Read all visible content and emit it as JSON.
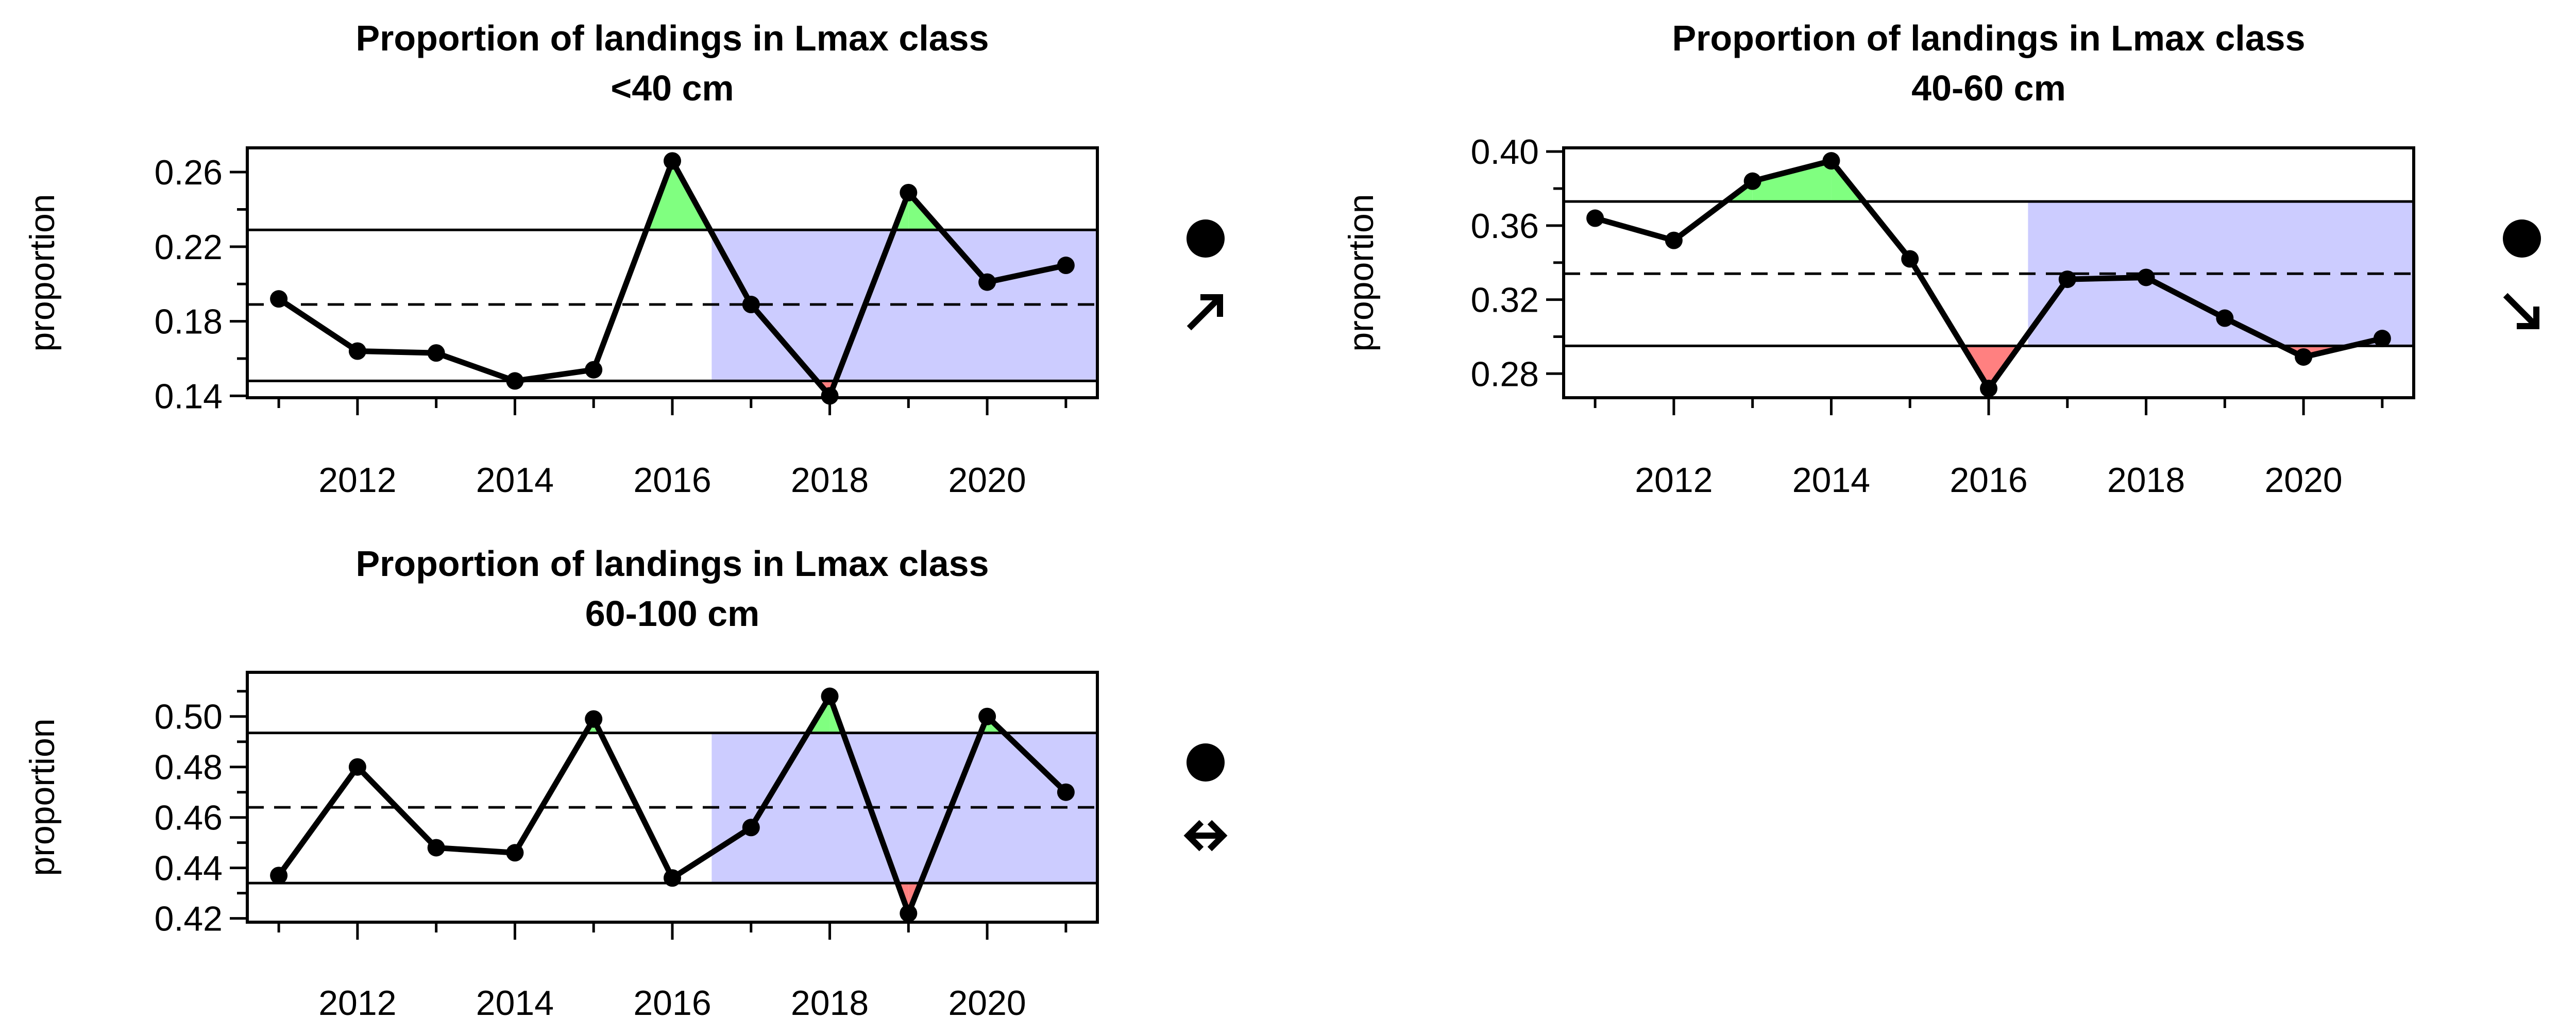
{
  "chart_data": [
    {
      "type": "line",
      "title": [
        "Proportion of landings in Lmax class",
        "<40 cm"
      ],
      "ylabel": "proportion",
      "x": [
        2011,
        2012,
        2013,
        2014,
        2015,
        2016,
        2017,
        2018,
        2019,
        2020,
        2021
      ],
      "values": [
        0.192,
        0.164,
        0.163,
        0.148,
        0.154,
        0.266,
        0.189,
        0.14,
        0.249,
        0.201,
        0.21
      ],
      "xticks": [
        "2012",
        "2014",
        "2016",
        "2018",
        "2020"
      ],
      "yticks": [
        "0.14",
        "0.18",
        "0.22",
        "0.26"
      ],
      "ylim": [
        0.139,
        0.273
      ],
      "xlim": [
        2010.6,
        2021.4
      ],
      "mean": 0.189,
      "upper": 0.229,
      "lower": 0.148,
      "recent_from": 2016.5,
      "status_icon": "filled-circle",
      "trend_icon": "arrow-up-right"
    },
    {
      "type": "line",
      "title": [
        "Proportion of landings in Lmax class",
        "40-60 cm"
      ],
      "ylabel": "proportion",
      "x": [
        2011,
        2012,
        2013,
        2014,
        2015,
        2016,
        2017,
        2018,
        2019,
        2020,
        2021
      ],
      "values": [
        0.364,
        0.352,
        0.384,
        0.395,
        0.342,
        0.272,
        0.331,
        0.332,
        0.31,
        0.289,
        0.299
      ],
      "xticks": [
        "2012",
        "2014",
        "2016",
        "2018",
        "2020"
      ],
      "yticks": [
        "0.28",
        "0.32",
        "0.36",
        "0.40"
      ],
      "ylim": [
        0.267,
        0.402
      ],
      "xlim": [
        2010.6,
        2021.4
      ],
      "mean": 0.334,
      "upper": 0.373,
      "lower": 0.295,
      "recent_from": 2016.5,
      "status_icon": "filled-circle",
      "trend_icon": "arrow-down-right"
    },
    {
      "type": "line",
      "title": [
        "Proportion of landings in Lmax class",
        "60-100 cm"
      ],
      "ylabel": "proportion",
      "x": [
        2011,
        2012,
        2013,
        2014,
        2015,
        2016,
        2017,
        2018,
        2019,
        2020,
        2021
      ],
      "values": [
        0.437,
        0.48,
        0.448,
        0.446,
        0.499,
        0.436,
        0.456,
        0.508,
        0.422,
        0.5,
        0.47
      ],
      "xticks": [
        "2012",
        "2014",
        "2016",
        "2018",
        "2020"
      ],
      "yticks": [
        "0.42",
        "0.44",
        "0.46",
        "0.48",
        "0.50"
      ],
      "ylim": [
        0.4185,
        0.5175
      ],
      "xlim": [
        2010.6,
        2021.4
      ],
      "mean": 0.464,
      "upper": 0.4935,
      "lower": 0.434,
      "recent_from": 2016.5,
      "status_icon": "filled-circle",
      "trend_icon": "arrow-left-right"
    }
  ],
  "colors": {
    "recent_band": "#ccccff",
    "above_upper": "#80ff80",
    "below_lower": "#ff8080",
    "line": "#000000"
  }
}
